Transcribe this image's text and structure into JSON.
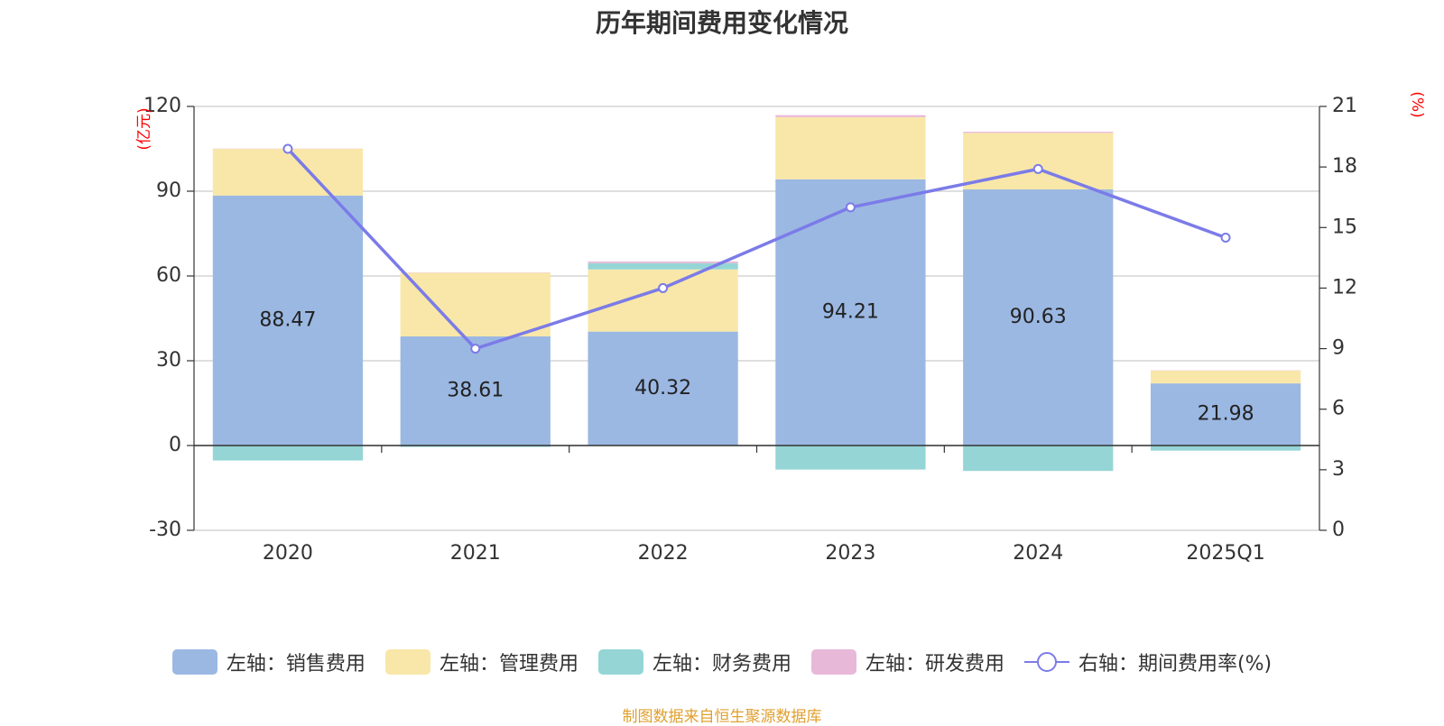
{
  "title": "历年期间费用变化情况",
  "source_note": "制图数据来自恒生聚源数据库",
  "chart_data": {
    "type": "bar",
    "stacked": true,
    "categories": [
      "2020",
      "2021",
      "2022",
      "2023",
      "2024",
      "2025Q1"
    ],
    "left_axis": {
      "label": "(亿元)",
      "range": [
        -30,
        120
      ],
      "ticks": [
        -30,
        0,
        30,
        60,
        90,
        120
      ],
      "label_color": "#ff0000"
    },
    "right_axis": {
      "label": "(%)",
      "range": [
        0,
        21
      ],
      "ticks": [
        0,
        3,
        6,
        9,
        12,
        15,
        18,
        21
      ],
      "label_color": "#ff0000"
    },
    "grid": true,
    "legend_position": "bottom",
    "series": [
      {
        "name": "左轴：销售费用",
        "axis": "left",
        "type": "bar",
        "color": "#9bb8e3",
        "values": [
          88.47,
          38.61,
          40.32,
          94.21,
          90.63,
          21.98
        ],
        "show_labels": true
      },
      {
        "name": "左轴：管理费用",
        "axis": "left",
        "type": "bar",
        "color": "#f8e7a8",
        "values": [
          16.5,
          22.5,
          22.0,
          22.0,
          20.0,
          4.5
        ],
        "show_labels": false
      },
      {
        "name": "左轴：财务费用",
        "axis": "left",
        "type": "bar",
        "color": "#95d5d5",
        "values": [
          -5.3,
          -0.5,
          2.2,
          -8.5,
          -9.0,
          -1.8
        ],
        "show_labels": false
      },
      {
        "name": "左轴：研发费用",
        "axis": "left",
        "type": "bar",
        "color": "#e8b8d8",
        "values": [
          0.1,
          0.1,
          0.6,
          0.7,
          0.4,
          0.1
        ],
        "show_labels": false
      },
      {
        "name": "右轴：期间费用率(%)",
        "axis": "right",
        "type": "line",
        "color": "#7b7be8",
        "values": [
          18.9,
          9.0,
          12.0,
          16.0,
          17.9,
          14.5
        ],
        "show_labels": false
      }
    ]
  }
}
